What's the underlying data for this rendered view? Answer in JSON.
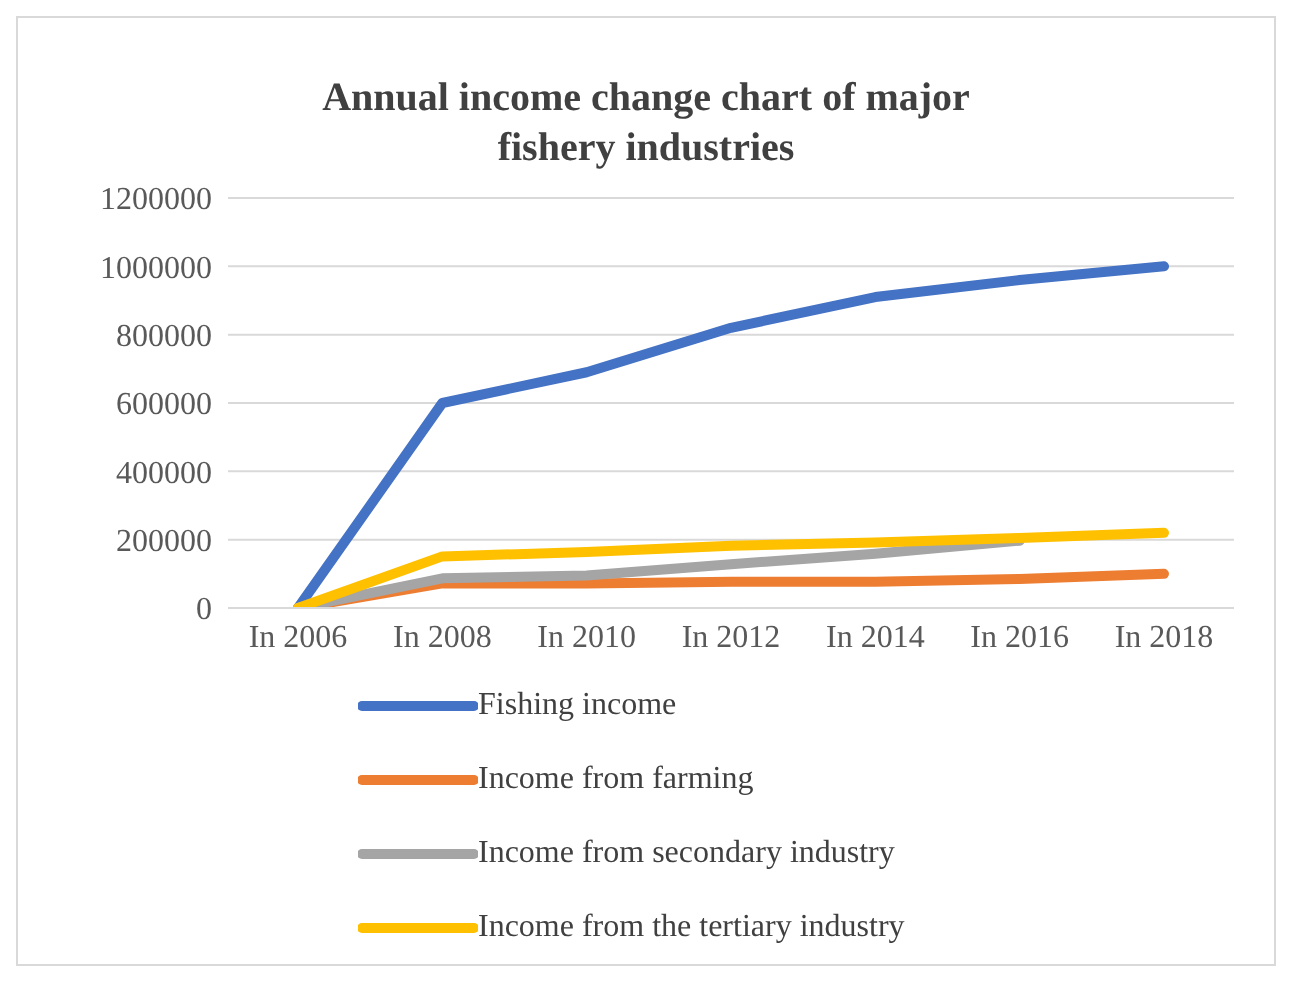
{
  "chart_data": {
    "type": "line",
    "title": "Annual income change chart of major fishery industries",
    "categories": [
      "In 2006",
      "In 2008",
      "In 2010",
      "In 2012",
      "In 2014",
      "In 2016",
      "In 2018"
    ],
    "series": [
      {
        "name": "Fishing income",
        "color": "#4472c4",
        "values": [
          0,
          600000,
          690000,
          820000,
          910000,
          960000,
          1000000
        ]
      },
      {
        "name": "Income from farming",
        "color": "#ed7d31",
        "values": [
          0,
          72000,
          72000,
          77000,
          77000,
          85000,
          100000
        ]
      },
      {
        "name": "Income from secondary industry",
        "color": "#a5a5a5",
        "values": [
          0,
          87000,
          95000,
          128000,
          159000,
          197000,
          null
        ]
      },
      {
        "name": "Income from the tertiary industry",
        "color": "#ffc000",
        "values": [
          0,
          151000,
          164000,
          182000,
          192000,
          205000,
          220000
        ]
      }
    ],
    "ylim": [
      0,
      1200000
    ],
    "yticks": [
      0,
      200000,
      400000,
      600000,
      800000,
      1000000,
      1200000
    ],
    "grid": "y",
    "legend": "bottom",
    "marker": "none",
    "line_style": "solid"
  }
}
